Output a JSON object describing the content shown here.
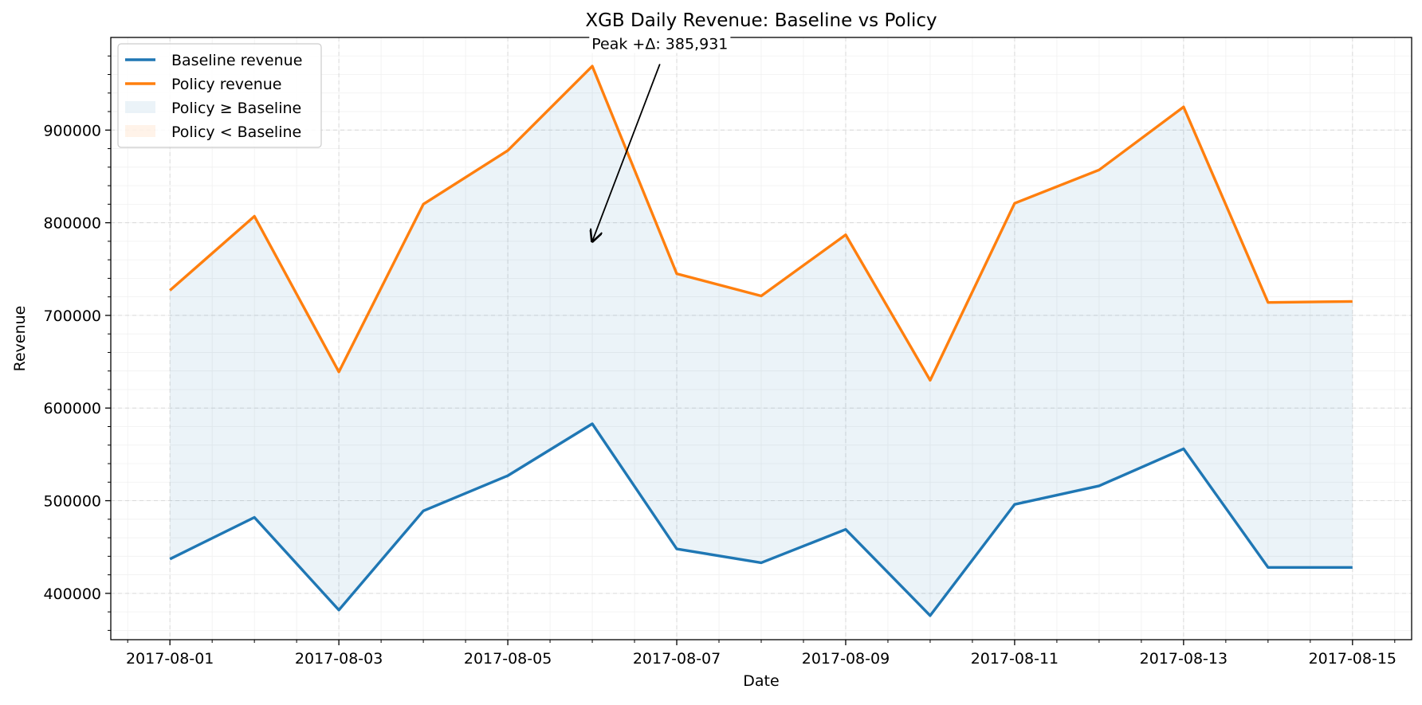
{
  "chart_data": {
    "type": "line",
    "title": "XGB Daily Revenue: Baseline vs Policy",
    "xlabel": "Date",
    "ylabel": "Revenue",
    "x": [
      "2017-08-01",
      "2017-08-02",
      "2017-08-03",
      "2017-08-04",
      "2017-08-05",
      "2017-08-06",
      "2017-08-07",
      "2017-08-08",
      "2017-08-09",
      "2017-08-10",
      "2017-08-11",
      "2017-08-12",
      "2017-08-13",
      "2017-08-14",
      "2017-08-15"
    ],
    "x_tick_labels": [
      "2017-08-01",
      "2017-08-03",
      "2017-08-05",
      "2017-08-07",
      "2017-08-09",
      "2017-08-11",
      "2017-08-13",
      "2017-08-15"
    ],
    "y_tick_values": [
      400000,
      500000,
      600000,
      700000,
      800000,
      900000
    ],
    "ylim": [
      350000,
      1000000
    ],
    "xlim_days": [
      -0.7,
      14.7
    ],
    "grid": true,
    "series": [
      {
        "name": "Baseline revenue",
        "color": "#1f77b4",
        "values": [
          437000,
          482000,
          382000,
          489000,
          527000,
          583000,
          448000,
          433000,
          469000,
          376000,
          496000,
          516000,
          556000,
          428000,
          428000
        ]
      },
      {
        "name": "Policy revenue",
        "color": "#ff7f0e",
        "values": [
          727000,
          807000,
          639000,
          820000,
          878000,
          969000,
          745000,
          721000,
          787000,
          630000,
          821000,
          857000,
          925000,
          714000,
          715000
        ]
      }
    ],
    "fill_regions": [
      {
        "name": "Policy ≥ Baseline",
        "color": "#1f77b4",
        "opacity": 0.09
      },
      {
        "name": "Policy < Baseline",
        "color": "#ff7f0e",
        "opacity": 0.09
      }
    ],
    "legend_position": "upper-left",
    "annotation": {
      "text": "Peak +Δ: 385,931",
      "target_day_index": 5,
      "target_value": 780000,
      "text_anchor_day": 5.8,
      "text_anchor_value": 985000
    }
  }
}
